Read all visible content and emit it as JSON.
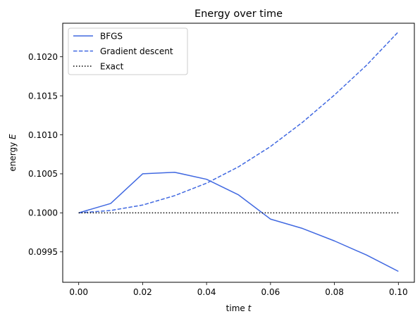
{
  "chart_data": {
    "type": "line",
    "title": "Energy over time",
    "xlabel": "time",
    "xlabel_var": "t",
    "ylabel": "energy",
    "ylabel_var": "E",
    "xlim": [
      -0.005,
      0.105
    ],
    "ylim": [
      0.09911,
      0.10243
    ],
    "xticks": [
      0.0,
      0.02,
      0.04,
      0.06,
      0.08,
      0.1
    ],
    "xtick_labels": [
      "0.00",
      "0.02",
      "0.04",
      "0.06",
      "0.08",
      "0.10"
    ],
    "yticks": [
      0.0995,
      0.1,
      0.1005,
      0.101,
      0.1015,
      0.102
    ],
    "ytick_labels": [
      "0.0995",
      "0.1000",
      "0.1005",
      "0.1010",
      "0.1015",
      "0.1020"
    ],
    "grid": false,
    "legend_position": "top-left",
    "x": [
      0.0,
      0.01,
      0.02,
      0.03,
      0.04,
      0.05,
      0.06,
      0.07,
      0.08,
      0.09,
      0.1
    ],
    "series": [
      {
        "name": "BFGS",
        "color": "#4169e1",
        "style": "solid",
        "values": [
          0.1,
          0.10012,
          0.1005,
          0.10052,
          0.10043,
          0.10023,
          0.09992,
          0.0998,
          0.09964,
          0.09946,
          0.09925
        ]
      },
      {
        "name": "Gradient descent",
        "color": "#4169e1",
        "style": "dashed",
        "values": [
          0.1,
          0.10003,
          0.1001,
          0.10022,
          0.10038,
          0.10059,
          0.10085,
          0.10116,
          0.10151,
          0.10189,
          0.10232
        ]
      },
      {
        "name": "Exact",
        "color": "#000000",
        "style": "dotted",
        "values": [
          0.1,
          0.1,
          0.1,
          0.1,
          0.1,
          0.1,
          0.1,
          0.1,
          0.1,
          0.1,
          0.1
        ]
      }
    ]
  }
}
